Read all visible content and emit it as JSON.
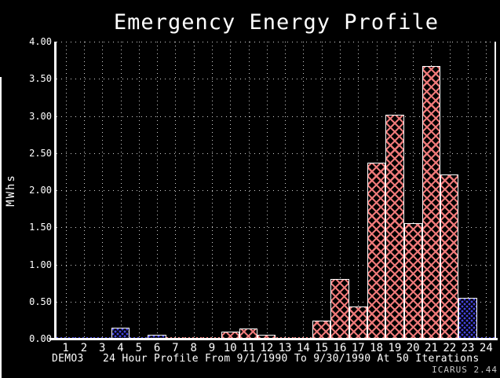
{
  "window": {
    "footer": "ICARUS 2.44"
  },
  "chart_data": {
    "type": "bar",
    "title": "Emergency Energy Profile",
    "ylabel": "MWhs",
    "xlabel": "DEMO3   24 Hour Profile From 9/1/1990 To 9/30/1990 At 50 Iterations",
    "x_caption_prefix": "DEMO3",
    "x_caption": "24 Hour Profile From 9/1/1990 To 9/30/1990 At 50 Iterations",
    "categories": [
      "1",
      "2",
      "3",
      "4",
      "5",
      "6",
      "7",
      "8",
      "9",
      "10",
      "11",
      "12",
      "13",
      "14",
      "15",
      "16",
      "17",
      "18",
      "19",
      "20",
      "21",
      "22",
      "23",
      "24"
    ],
    "values": [
      0.01,
      0.01,
      0.01,
      0.15,
      0.02,
      0.05,
      0.01,
      0.01,
      0.02,
      0.1,
      0.14,
      0.05,
      0.01,
      0.01,
      0.24,
      0.8,
      0.43,
      2.37,
      3.02,
      1.56,
      3.67,
      2.21,
      0.55,
      0.02
    ],
    "bar_styles": [
      "blue",
      "blue",
      "blue",
      "blue",
      "blue",
      "blue",
      "red",
      "red",
      "red",
      "red",
      "red",
      "red",
      "red",
      "red",
      "red",
      "red",
      "red",
      "red",
      "red",
      "red",
      "red",
      "red",
      "blue",
      "blue"
    ],
    "ylim": [
      0,
      4
    ],
    "ytick_values": [
      0,
      0.5,
      1,
      1.5,
      2,
      2.5,
      3,
      3.5,
      4
    ],
    "ytick_labels": [
      "0.00",
      "0.50",
      "1.00",
      "1.50",
      "2.00",
      "2.50",
      "3.00",
      "3.50",
      "4.00"
    ],
    "grid": "dotted",
    "legend": "none",
    "colors": {
      "background": "#000000",
      "blue_fill": "#4444dd",
      "red_fill": "#ee7979",
      "bar_outline": "#ffffff",
      "grid_dots": "#d0d0d0",
      "text": "#ffffff",
      "footer_text": "#c8c8c8"
    }
  }
}
